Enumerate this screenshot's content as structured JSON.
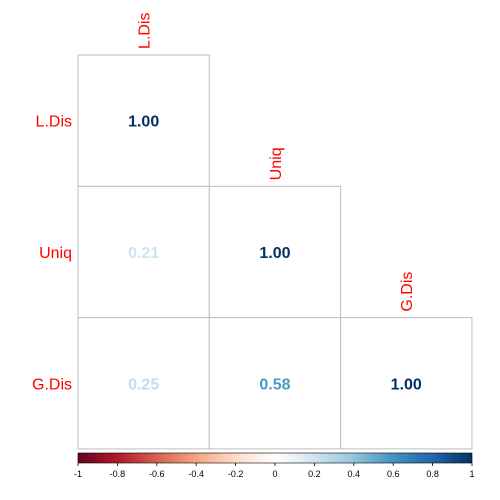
{
  "chart_data": {
    "type": "heatmap",
    "variables": [
      "L.Dis",
      "Uniq",
      "G.Dis"
    ],
    "matrix": [
      [
        1.0,
        null,
        null
      ],
      [
        0.21,
        1.0,
        null
      ],
      [
        0.25,
        0.58,
        1.0
      ]
    ],
    "cell_labels": [
      [
        "1.00",
        "",
        ""
      ],
      [
        "0.21",
        "1.00",
        ""
      ],
      [
        "0.25",
        "0.58",
        "1.00"
      ]
    ],
    "color_scale": {
      "min": -1,
      "max": 1,
      "ticks": [
        "-1",
        "-0.8",
        "-0.6",
        "-0.4",
        "-0.2",
        "0",
        "0.2",
        "0.4",
        "0.6",
        "0.8",
        "1"
      ],
      "stops": [
        "#67001F",
        "#B2182B",
        "#D6604D",
        "#F4A582",
        "#FDDBC7",
        "#FFFFFF",
        "#D1E5F0",
        "#92C5DE",
        "#4393C3",
        "#2166AC",
        "#053061"
      ]
    },
    "label_color": "#FF0000",
    "grid_color": "#BEBEBE",
    "legend_position": "bottom"
  }
}
